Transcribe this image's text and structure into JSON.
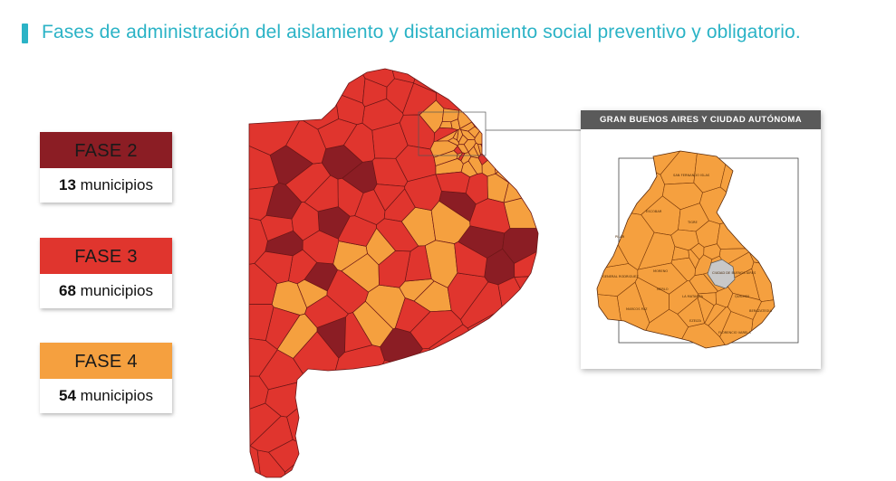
{
  "title": "Fases de administración del aislamiento y distanciamiento social preventivo y obligatorio.",
  "colors": {
    "accent": "#2bb3c6",
    "fase2": "#8b1d24",
    "fase3": "#e0352e",
    "fase4": "#f5a03f",
    "caba": "#c8c8c8",
    "border": "#6b1616"
  },
  "legend": [
    {
      "label": "FASE 2",
      "count": "13",
      "unit": " municipios",
      "color": "#8b1d24"
    },
    {
      "label": "FASE 3",
      "count": "68",
      "unit": " municipios",
      "color": "#e0352e"
    },
    {
      "label": "FASE 4",
      "count": "54",
      "unit": " municipios",
      "color": "#f5a03f"
    }
  ],
  "inset": {
    "title": "GRAN BUENOS AIRES Y CIUDAD AUTÓNOMA",
    "labels": {
      "san_fernando": "SAN FERNANDO ISLAS",
      "pilar": "PILAR",
      "tigre": "TIGRE",
      "escobar": "ESCOBAR",
      "moreno": "MORENO",
      "gral_rodriguez": "GENERAL RODRIGUEZ",
      "merlo": "MERLO",
      "la_matanza": "LA MATANZA",
      "marcos_paz": "MARCOS PAZ",
      "ezeiza": "EZEIZA",
      "berazategui": "BERAZATEGUI",
      "quilmes": "QUILMES",
      "florencio_varela": "FLORENCIO VARELA",
      "caba": "CIUDAD DE BUENOS AIRES"
    }
  }
}
